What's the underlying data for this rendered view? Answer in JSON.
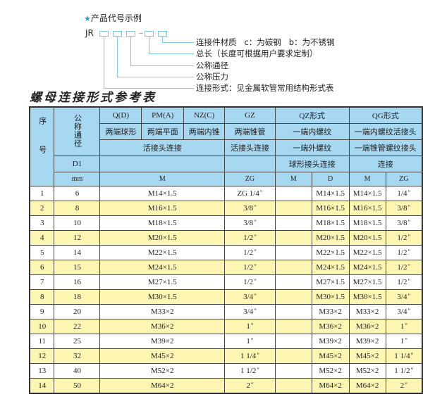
{
  "code_example": {
    "title": "产品代号示例",
    "prefix": "JR",
    "labels": [
      "连接件材质   c：为碳钢   b：为不锈钢",
      "总长（长度可根据用户要求定制）",
      "公称通径",
      "公称压力",
      "连接形式：见金属软管常用结构形式表"
    ]
  },
  "table_title": "螺母连接形式参考表",
  "header": {
    "seq": "序号",
    "nominal": "公称通径",
    "row1": [
      "Q(D)",
      "PM(A)",
      "NZ(C)",
      "GZ",
      "QZ形式",
      "QG形式"
    ],
    "row2": [
      "两端球形",
      "两端平面",
      "两端内锥",
      "两端锥管",
      "一端内螺纹",
      "一端内螺纹活接头"
    ],
    "row3": [
      "活接头连接",
      "活接头连接",
      "一端外螺纹",
      "一端锥管螺纹接头"
    ],
    "row4": [
      "D1",
      "",
      "",
      "球形接头连接",
      "连接"
    ],
    "row5": [
      "mm",
      "M",
      "ZG",
      "M",
      "D",
      "M",
      "ZG"
    ]
  },
  "colors": {
    "header_bg": "#a6d8f2",
    "alt_row_bg": "#fdf6b3",
    "accent": "#1aa0d8"
  },
  "rows": [
    {
      "no": "1",
      "d1": "6",
      "m": "M14×1.5",
      "zg": "ZG 1/4",
      "qz_m": "",
      "qz_d": "M14×1.5",
      "qg_m": "M14×1.5",
      "qg_zg": "1/4"
    },
    {
      "no": "2",
      "d1": "8",
      "m": "M16×1.5",
      "zg": "3/8",
      "qz_m": "",
      "qz_d": "M16×1.5",
      "qg_m": "M16×1.5",
      "qg_zg": "3/8"
    },
    {
      "no": "3",
      "d1": "10",
      "m": "M18×1.5",
      "zg": "3/8",
      "qz_m": "",
      "qz_d": "M18×1.5",
      "qg_m": "M18×1.5",
      "qg_zg": "3/8"
    },
    {
      "no": "4",
      "d1": "12",
      "m": "M20×1.5",
      "zg": "1/2",
      "qz_m": "",
      "qz_d": "M20×1.5",
      "qg_m": "M20×1.5",
      "qg_zg": "1/2"
    },
    {
      "no": "5",
      "d1": "14",
      "m": "M22×1.5",
      "zg": "1/2",
      "qz_m": "",
      "qz_d": "M22×1.5",
      "qg_m": "M22×1.5",
      "qg_zg": "1/2"
    },
    {
      "no": "6",
      "d1": "15",
      "m": "M24×1.5",
      "zg": "1/2",
      "qz_m": "",
      "qz_d": "M24×1.5",
      "qg_m": "M24×1.5",
      "qg_zg": "1/2"
    },
    {
      "no": "7",
      "d1": "16",
      "m": "M27×1.5",
      "zg": "1/2",
      "qz_m": "",
      "qz_d": "M27×1.5",
      "qg_m": "M27×1.5",
      "qg_zg": "1/2"
    },
    {
      "no": "8",
      "d1": "18",
      "m": "M30×1.5",
      "zg": "3/4",
      "qz_m": "",
      "qz_d": "M30×1.5",
      "qg_m": "M30×1.5",
      "qg_zg": "3/4"
    },
    {
      "no": "9",
      "d1": "20",
      "m": "M33×2",
      "zg": "3/4",
      "qz_m": "",
      "qz_d": "M33×2",
      "qg_m": "M33×2",
      "qg_zg": "3/4"
    },
    {
      "no": "10",
      "d1": "22",
      "m": "M36×2",
      "zg": "1",
      "qz_m": "",
      "qz_d": "M36×2",
      "qg_m": "M36×2",
      "qg_zg": "1"
    },
    {
      "no": "11",
      "d1": "25",
      "m": "M39×2",
      "zg": "1",
      "qz_m": "",
      "qz_d": "M39×2",
      "qg_m": "M39×2",
      "qg_zg": "1"
    },
    {
      "no": "12",
      "d1": "32",
      "m": "M45×2",
      "zg": "1 1/4",
      "qz_m": "",
      "qz_d": "M45×2",
      "qg_m": "M45×2",
      "qg_zg": "1 1/4"
    },
    {
      "no": "13",
      "d1": "40",
      "m": "M52×2",
      "zg": "1 1/2",
      "qz_m": "",
      "qz_d": "M52×2",
      "qg_m": "M52×2",
      "qg_zg": "1 1/2"
    },
    {
      "no": "14",
      "d1": "50",
      "m": "M64×2",
      "zg": "2",
      "qz_m": "",
      "qz_d": "M64×2",
      "qg_m": "M64×2",
      "qg_zg": "2"
    }
  ]
}
